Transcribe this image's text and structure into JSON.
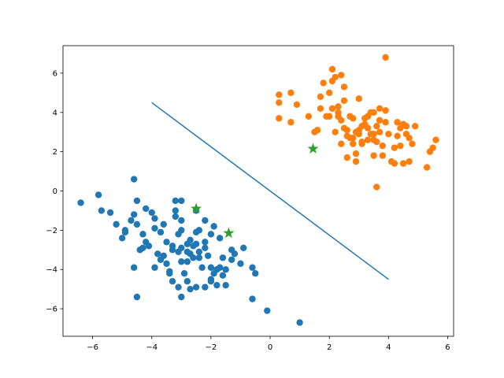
{
  "chart_data": {
    "type": "scatter",
    "title": "",
    "xlabel": "",
    "ylabel": "",
    "xlim": [
      -7.0,
      6.2
    ],
    "ylim": [
      -7.4,
      7.4
    ],
    "grid": false,
    "x_ticks": [
      -6,
      -4,
      -2,
      0,
      2,
      4,
      6
    ],
    "x_tick_labels": [
      "−6",
      "−4",
      "−2",
      "0",
      "2",
      "4",
      "6"
    ],
    "y_ticks": [
      -6,
      -4,
      -2,
      0,
      2,
      4,
      6
    ],
    "y_tick_labels": [
      "−6",
      "−4",
      "−2",
      "0",
      "2",
      "4",
      "6"
    ],
    "colors": {
      "blue": "#1f77b4",
      "orange": "#ff7f0e",
      "green": "#2ca02c"
    },
    "series": [
      {
        "marker": "circle",
        "color": "#1f77b4",
        "points": [
          [
            -6.4,
            -0.6
          ],
          [
            -5.8,
            -0.2
          ],
          [
            -5.7,
            -1.0
          ],
          [
            -5.4,
            -1.1
          ],
          [
            -5.2,
            -1.7
          ],
          [
            -5.0,
            -2.4
          ],
          [
            -4.9,
            -2.1
          ],
          [
            -4.9,
            -2.0
          ],
          [
            -4.7,
            -1.5
          ],
          [
            -4.6,
            0.6
          ],
          [
            -4.5,
            -0.5
          ],
          [
            -4.6,
            -1.2
          ],
          [
            -4.5,
            -1.7
          ],
          [
            -4.3,
            -2.2
          ],
          [
            -4.4,
            -3.0
          ],
          [
            -4.3,
            -2.9
          ],
          [
            -4.2,
            -0.9
          ],
          [
            -4.2,
            -2.6
          ],
          [
            -4.1,
            -2.8
          ],
          [
            -4.0,
            -1.1
          ],
          [
            -3.9,
            -1.4
          ],
          [
            -3.9,
            -1.9
          ],
          [
            -3.9,
            -3.9
          ],
          [
            -3.8,
            -3.2
          ],
          [
            -3.7,
            -2.1
          ],
          [
            -3.7,
            -3.5
          ],
          [
            -3.6,
            -1.7
          ],
          [
            -3.5,
            -2.6
          ],
          [
            -3.5,
            -3.7
          ],
          [
            -3.4,
            -4.1
          ],
          [
            -3.4,
            -4.2
          ],
          [
            -3.3,
            -2.8
          ],
          [
            -3.3,
            -3.0
          ],
          [
            -3.2,
            -0.5
          ],
          [
            -3.2,
            -1.3
          ],
          [
            -3.1,
            -2.2
          ],
          [
            -3.1,
            -3.1
          ],
          [
            -3.0,
            -0.5
          ],
          [
            -3.0,
            -1.5
          ],
          [
            -3.0,
            -2.0
          ],
          [
            -3.0,
            -2.9
          ],
          [
            -3.0,
            -3.6
          ],
          [
            -2.9,
            -4.2
          ],
          [
            -2.8,
            -2.7
          ],
          [
            -2.8,
            -3.1
          ],
          [
            -2.7,
            -2.5
          ],
          [
            -2.7,
            -3.2
          ],
          [
            -2.6,
            -2.8
          ],
          [
            -2.6,
            -3.4
          ],
          [
            -2.5,
            -2.1
          ],
          [
            -2.5,
            -2.7
          ],
          [
            -2.4,
            -3.1
          ],
          [
            -2.4,
            -3.4
          ],
          [
            -2.3,
            -3.9
          ],
          [
            -2.2,
            -1.5
          ],
          [
            -2.2,
            -2.6
          ],
          [
            -2.2,
            -2.9
          ],
          [
            -2.1,
            -3.3
          ],
          [
            -2.0,
            -3.9
          ],
          [
            -2.0,
            -4.5
          ],
          [
            -1.9,
            -1.8
          ],
          [
            -1.9,
            -4.2
          ],
          [
            -1.8,
            -4.8
          ],
          [
            -1.7,
            -3.9
          ],
          [
            -1.6,
            -4.3
          ],
          [
            -1.5,
            -4.0
          ],
          [
            -1.3,
            -3.0
          ],
          [
            -1.2,
            -3.2
          ],
          [
            -1.0,
            -3.7
          ],
          [
            -0.9,
            -2.9
          ],
          [
            -0.6,
            -3.9
          ],
          [
            -0.5,
            -4.2
          ],
          [
            -0.6,
            -5.5
          ],
          [
            -0.1,
            -6.1
          ],
          [
            1.0,
            -6.7
          ],
          [
            -4.6,
            -3.9
          ],
          [
            -4.5,
            -5.4
          ],
          [
            -3.1,
            -4.9
          ],
          [
            -3.0,
            -5.4
          ],
          [
            -2.8,
            -4.6
          ],
          [
            -3.3,
            -4.6
          ],
          [
            -2.7,
            -5.0
          ],
          [
            -2.5,
            -4.9
          ],
          [
            -2.2,
            -4.9
          ],
          [
            -2.0,
            -4.6
          ],
          [
            -1.8,
            -4.0
          ],
          [
            -1.6,
            -3.4
          ],
          [
            -1.5,
            -4.8
          ],
          [
            -1.3,
            -3.5
          ],
          [
            -2.5,
            -1.0
          ],
          [
            -3.2,
            -1.0
          ],
          [
            -2.8,
            -3.6
          ],
          [
            -3.6,
            -3.3
          ],
          [
            -2.4,
            -2.0
          ],
          [
            -2.0,
            -2.2
          ],
          [
            -1.7,
            -2.4
          ]
        ]
      },
      {
        "marker": "circle",
        "color": "#ff7f0e",
        "points": [
          [
            0.3,
            4.5
          ],
          [
            0.3,
            4.9
          ],
          [
            0.7,
            5.0
          ],
          [
            0.9,
            4.4
          ],
          [
            0.3,
            3.7
          ],
          [
            0.7,
            3.5
          ],
          [
            1.3,
            3.8
          ],
          [
            1.5,
            3.0
          ],
          [
            1.6,
            3.1
          ],
          [
            1.7,
            4.2
          ],
          [
            1.8,
            5.5
          ],
          [
            1.7,
            4.8
          ],
          [
            1.9,
            3.8
          ],
          [
            2.0,
            3.8
          ],
          [
            2.0,
            5.0
          ],
          [
            2.1,
            5.6
          ],
          [
            2.1,
            6.2
          ],
          [
            2.1,
            4.2
          ],
          [
            2.2,
            3.0
          ],
          [
            2.2,
            5.8
          ],
          [
            2.3,
            3.8
          ],
          [
            2.3,
            4.3
          ],
          [
            2.3,
            4.0
          ],
          [
            2.4,
            5.9
          ],
          [
            2.4,
            3.6
          ],
          [
            2.5,
            3.2
          ],
          [
            2.5,
            4.6
          ],
          [
            2.5,
            5.3
          ],
          [
            2.6,
            3.1
          ],
          [
            2.6,
            2.8
          ],
          [
            2.7,
            2.7
          ],
          [
            2.7,
            3.8
          ],
          [
            2.8,
            2.4
          ],
          [
            2.8,
            3.7
          ],
          [
            2.9,
            1.5
          ],
          [
            2.9,
            3.0
          ],
          [
            3.0,
            4.7
          ],
          [
            3.0,
            2.9
          ],
          [
            3.1,
            3.3
          ],
          [
            3.1,
            2.4
          ],
          [
            3.2,
            3.7
          ],
          [
            3.2,
            3.4
          ],
          [
            3.3,
            3.8
          ],
          [
            3.3,
            3.2
          ],
          [
            3.4,
            2.9
          ],
          [
            3.4,
            4.0
          ],
          [
            3.5,
            2.6
          ],
          [
            3.5,
            4.0
          ],
          [
            3.5,
            1.8
          ],
          [
            3.6,
            3.3
          ],
          [
            3.6,
            2.5
          ],
          [
            3.6,
            0.2
          ],
          [
            3.7,
            4.2
          ],
          [
            3.7,
            3.0
          ],
          [
            3.8,
            2.3
          ],
          [
            3.8,
            1.8
          ],
          [
            3.9,
            3.5
          ],
          [
            3.9,
            4.1
          ],
          [
            3.9,
            6.8
          ],
          [
            4.0,
            2.9
          ],
          [
            4.1,
            1.5
          ],
          [
            4.2,
            2.2
          ],
          [
            4.3,
            3.5
          ],
          [
            4.3,
            2.8
          ],
          [
            4.4,
            3.2
          ],
          [
            4.4,
            2.3
          ],
          [
            4.5,
            1.4
          ],
          [
            4.5,
            3.4
          ],
          [
            4.6,
            3.3
          ],
          [
            4.6,
            2.9
          ],
          [
            4.7,
            1.5
          ],
          [
            4.7,
            2.7
          ],
          [
            4.8,
            2.4
          ],
          [
            4.9,
            3.3
          ],
          [
            5.3,
            1.2
          ],
          [
            5.4,
            2.0
          ],
          [
            5.5,
            2.2
          ],
          [
            5.6,
            2.6
          ],
          [
            2.8,
            2.7
          ],
          [
            3.1,
            2.5
          ],
          [
            2.6,
            1.7
          ],
          [
            2.4,
            2.4
          ],
          [
            3.5,
            2.9
          ],
          [
            3.3,
            2.6
          ],
          [
            3.7,
            3.6
          ],
          [
            4.2,
            1.4
          ],
          [
            3.0,
            3.1
          ],
          [
            2.9,
            1.9
          ]
        ]
      },
      {
        "marker": "star",
        "color": "#2ca02c",
        "points": [
          [
            -2.5,
            -0.9
          ],
          [
            -1.4,
            -2.15
          ],
          [
            1.45,
            2.15
          ]
        ]
      }
    ],
    "line": {
      "color": "#1f77b4",
      "points": [
        [
          -4.0,
          4.5
        ],
        [
          4.0,
          -4.5
        ]
      ]
    }
  }
}
